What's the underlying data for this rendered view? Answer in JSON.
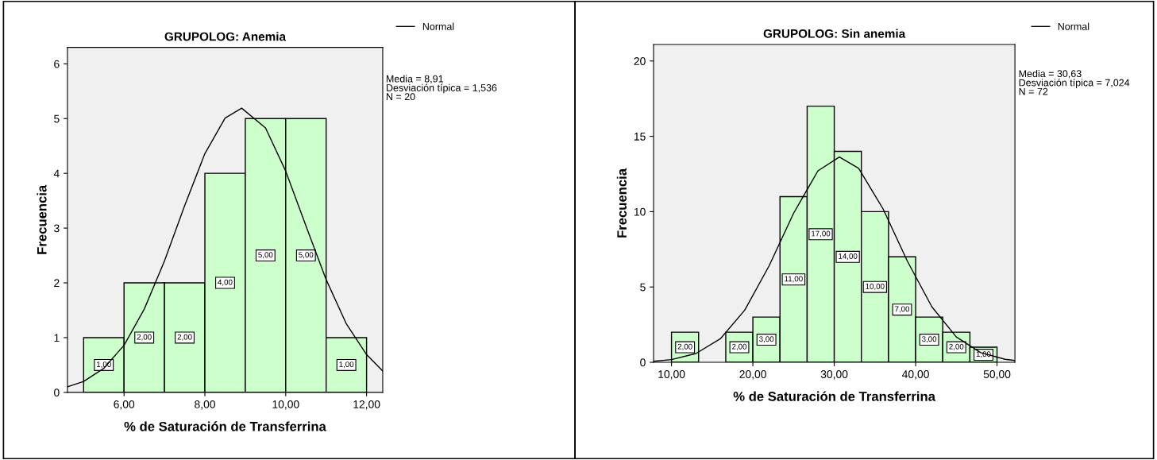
{
  "chart_data": [
    {
      "type": "histogram",
      "title": "GRUPOLOG: Anemia",
      "xlabel": "% de Saturación de Transferrina",
      "ylabel": "Frecuencia",
      "bins": [
        5,
        6,
        7,
        8,
        9,
        10,
        11,
        12
      ],
      "values": [
        1,
        2,
        2,
        4,
        5,
        5,
        1
      ],
      "color": "#ccffcc",
      "value_labels": [
        "1,00",
        "2,00",
        "2,00",
        "4,00",
        "5,00",
        "5,00",
        "1,00"
      ],
      "series": [
        {
          "name": "Normal",
          "type": "line",
          "color": "#000000",
          "x": [
            4.6,
            5.0,
            5.5,
            6.0,
            6.5,
            7.0,
            7.5,
            8.0,
            8.5,
            8.91,
            9.5,
            10.0,
            10.5,
            11.0,
            11.5,
            12.0,
            12.4
          ],
          "values": [
            0.1,
            0.2,
            0.44,
            0.86,
            1.52,
            2.4,
            3.41,
            4.36,
            5.01,
            5.19,
            4.83,
            4.04,
            3.04,
            2.06,
            1.25,
            0.69,
            0.39
          ]
        }
      ],
      "xlim": [
        4.6,
        12.4
      ],
      "xticks": [
        {
          "value": 6,
          "label": "6,00"
        },
        {
          "value": 8,
          "label": "8,00"
        },
        {
          "value": 10,
          "label": "10,00"
        },
        {
          "value": 12,
          "label": "12,00"
        }
      ],
      "ylim": [
        0,
        6.3
      ],
      "yticks": [
        0,
        1,
        2,
        3,
        4,
        5,
        6
      ],
      "legend": "top right",
      "grid": false,
      "annotations": [
        "Media = 8,91\nDesviación típica = 1,536\nN = 20"
      ]
    },
    {
      "type": "histogram",
      "title": "GRUPOLOG: Sin anemia",
      "xlabel": "% de Saturación de Transferrina",
      "ylabel": "Frecuencia",
      "bins": [
        10,
        13.33,
        16.67,
        20,
        23.33,
        26.67,
        30,
        33.33,
        36.67,
        40,
        43.33,
        46.67,
        50
      ],
      "values": [
        2,
        0,
        2,
        3,
        11,
        17,
        14,
        10,
        7,
        3,
        2,
        1
      ],
      "color": "#ccffcc",
      "value_labels": [
        "2,00",
        null,
        "2,00",
        "3,00",
        "11,00",
        "17,00",
        "14,00",
        "10,00",
        "7,00",
        "3,00",
        "2,00",
        "1,00"
      ],
      "series": [
        {
          "name": "Normal",
          "type": "line",
          "color": "#000000",
          "x": [
            7.8,
            10,
            13,
            16,
            19,
            22,
            25,
            28,
            30.63,
            33,
            36,
            39,
            42,
            45,
            48,
            51,
            52.2
          ],
          "values": [
            0.07,
            0.18,
            0.58,
            1.56,
            3.46,
            6.41,
            9.89,
            12.71,
            13.63,
            12.88,
            10.18,
            6.7,
            3.68,
            1.68,
            0.64,
            0.2,
            0.12
          ]
        }
      ],
      "xlim": [
        7.8,
        52.2
      ],
      "xticks": [
        {
          "value": 10,
          "label": "10,00"
        },
        {
          "value": 20,
          "label": "20,00"
        },
        {
          "value": 30,
          "label": "30,00"
        },
        {
          "value": 40,
          "label": "40,00"
        },
        {
          "value": 50,
          "label": "50,00"
        }
      ],
      "ylim": [
        0,
        21.1
      ],
      "yticks": [
        0,
        5,
        10,
        15,
        20
      ],
      "legend": "top right",
      "grid": false,
      "annotations": [
        "Media = 30,63\nDesviación típica = 7,024\nN = 72"
      ]
    }
  ]
}
